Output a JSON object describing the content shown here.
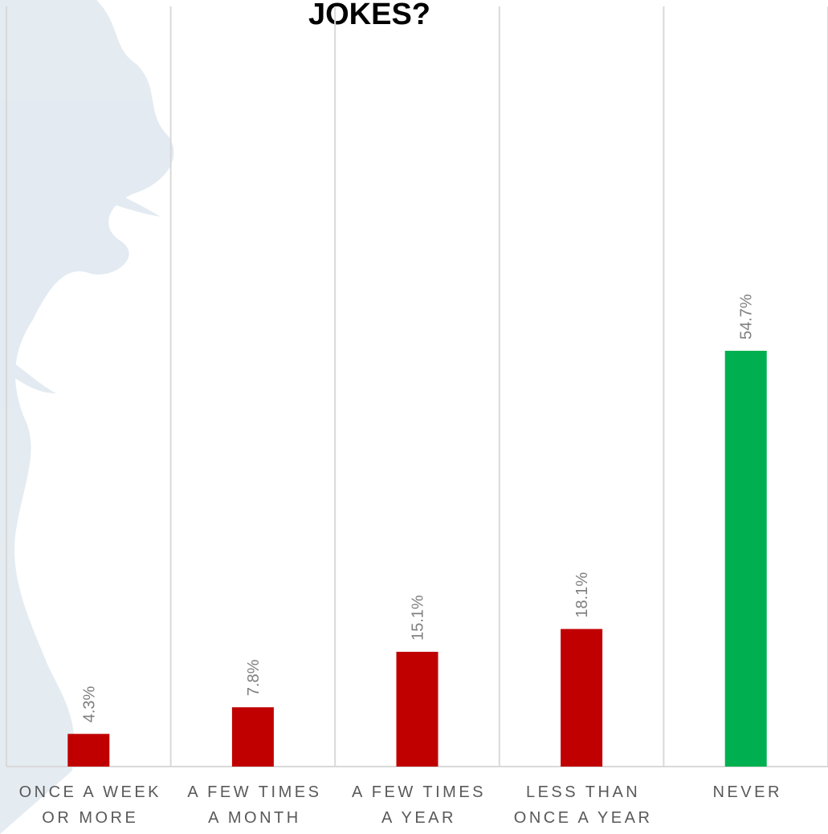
{
  "chart_data": {
    "type": "bar",
    "title": "JOKES?",
    "categories": [
      [
        "ONCE A WEEK",
        "OR MORE"
      ],
      [
        "A FEW TIMES",
        "A MONTH"
      ],
      [
        "A FEW TIMES",
        "A YEAR"
      ],
      [
        "LESS THAN",
        "ONCE A YEAR"
      ],
      [
        "NEVER"
      ]
    ],
    "values": [
      4.3,
      7.8,
      15.1,
      18.1,
      54.7
    ],
    "value_labels": [
      "4.3%",
      "7.8%",
      "15.1%",
      "18.1%",
      "54.7%"
    ],
    "colors": [
      "#c00000",
      "#c00000",
      "#c00000",
      "#c00000",
      "#00b050"
    ],
    "ylim": [
      0,
      100
    ],
    "grid": true
  }
}
